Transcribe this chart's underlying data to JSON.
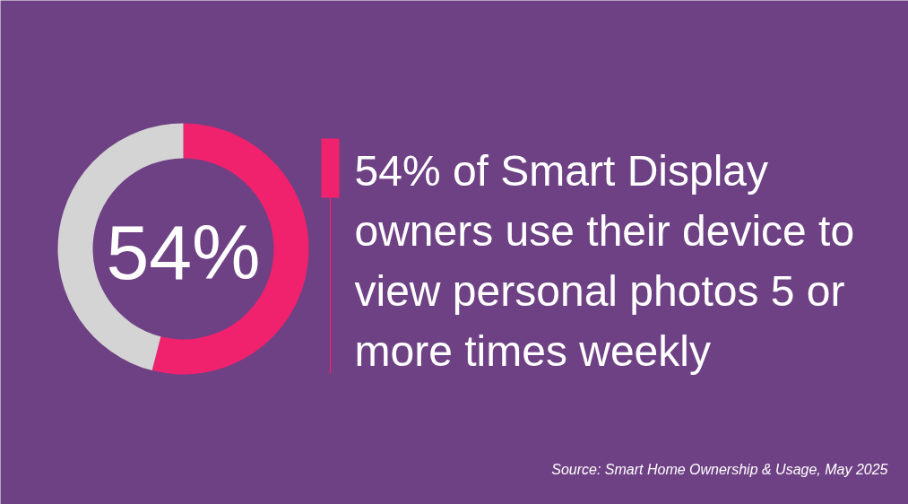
{
  "chart_data": {
    "type": "donut",
    "title": "54% of Smart Display owners use their device to view personal photos 5 or more times weekly",
    "categories": [
      null,
      null
    ],
    "values": [
      54,
      46
    ],
    "colors": [
      "#f0226e",
      "#d4d4d4"
    ],
    "annotations": [
      "54%",
      "Source: Smart Home Ownership & Usage, May 2025"
    ]
  }
}
